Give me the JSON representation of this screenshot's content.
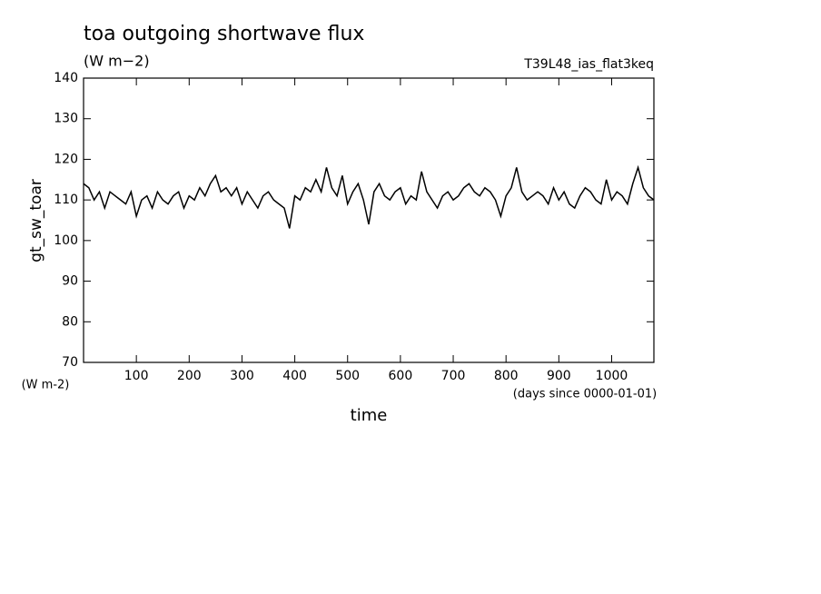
{
  "chart_data": {
    "type": "line",
    "title": "toa outgoing shortwave flux",
    "subtitle": "(W m−2)",
    "annotation": "T39L48_ias_flat3keq",
    "y_label": "gt_sw_toar",
    "y_units": "(W m-2)",
    "x_label": "time",
    "x_units": "(days since 0000-01-01)",
    "x": [
      0,
      10,
      20,
      30,
      40,
      50,
      60,
      70,
      80,
      90,
      100,
      110,
      120,
      130,
      140,
      150,
      160,
      170,
      180,
      190,
      200,
      210,
      220,
      230,
      240,
      250,
      260,
      270,
      280,
      290,
      300,
      310,
      320,
      330,
      340,
      350,
      360,
      370,
      380,
      390,
      400,
      410,
      420,
      430,
      440,
      450,
      460,
      470,
      480,
      490,
      500,
      510,
      520,
      530,
      540,
      550,
      560,
      570,
      580,
      590,
      600,
      610,
      620,
      630,
      640,
      650,
      660,
      670,
      680,
      690,
      700,
      710,
      720,
      730,
      740,
      750,
      760,
      770,
      780,
      790,
      800,
      810,
      820,
      830,
      840,
      850,
      860,
      870,
      880,
      890,
      900,
      910,
      920,
      930,
      940,
      950,
      960,
      970,
      980,
      990,
      1000,
      1010,
      1020,
      1030,
      1040,
      1050,
      1060,
      1070,
      1080
    ],
    "series": [
      {
        "color": "#000000",
        "values": [
          114,
          113,
          110,
          112,
          108,
          112,
          111,
          110,
          109,
          112,
          106,
          110,
          111,
          108,
          112,
          110,
          109,
          111,
          112,
          108,
          111,
          110,
          113,
          111,
          114,
          116,
          112,
          113,
          111,
          113,
          109,
          112,
          110,
          108,
          111,
          112,
          110,
          109,
          108,
          103,
          111,
          110,
          113,
          112,
          115,
          112,
          118,
          113,
          111,
          116,
          109,
          112,
          114,
          110,
          104,
          112,
          114,
          111,
          110,
          112,
          113,
          109,
          111,
          110,
          117,
          112,
          110,
          108,
          111,
          112,
          110,
          111,
          113,
          114,
          112,
          111,
          113,
          112,
          110,
          106,
          111,
          113,
          118,
          112,
          110,
          111,
          112,
          111,
          109,
          113,
          110,
          112,
          109,
          108,
          111,
          113,
          112,
          110,
          109,
          115,
          110,
          112,
          111,
          109,
          114,
          118,
          113,
          111,
          110
        ]
      }
    ],
    "xlim": [
      0,
      1080
    ],
    "xticks": [
      100,
      200,
      300,
      400,
      500,
      600,
      700,
      800,
      900,
      1000
    ],
    "ylim": [
      70,
      140
    ],
    "yticks": [
      70,
      80,
      90,
      100,
      110,
      120,
      130,
      140
    ],
    "grid": false
  }
}
